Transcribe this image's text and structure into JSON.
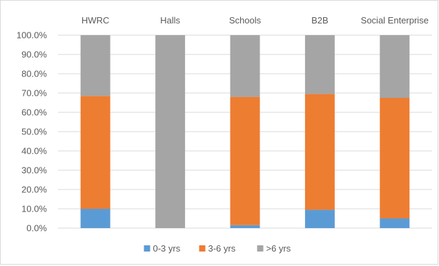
{
  "chart_data": {
    "type": "bar",
    "stacked": true,
    "categories": [
      "HWRC",
      "Halls",
      "Schools",
      "B2B",
      "Social Enterprise"
    ],
    "category_axis_position": "top",
    "series": [
      {
        "name": "0-3 yrs",
        "color": "#5b9bd5",
        "values": [
          10.0,
          0.0,
          1.5,
          9.5,
          5.0
        ]
      },
      {
        "name": "3-6 yrs",
        "color": "#ed7d31",
        "values": [
          58.5,
          0.0,
          66.5,
          60.0,
          62.5
        ]
      },
      {
        "name": ">6 yrs",
        "color": "#a5a5a5",
        "values": [
          31.5,
          100.0,
          32.0,
          30.5,
          32.5
        ]
      }
    ],
    "y_ticks": [
      "0.0%",
      "10.0%",
      "20.0%",
      "30.0%",
      "40.0%",
      "50.0%",
      "60.0%",
      "70.0%",
      "80.0%",
      "90.0%",
      "100.0%"
    ],
    "ylim": [
      0,
      100
    ],
    "y_format": "percent",
    "grid": true,
    "legend_position": "bottom",
    "title": "",
    "xlabel": "",
    "ylabel": ""
  }
}
